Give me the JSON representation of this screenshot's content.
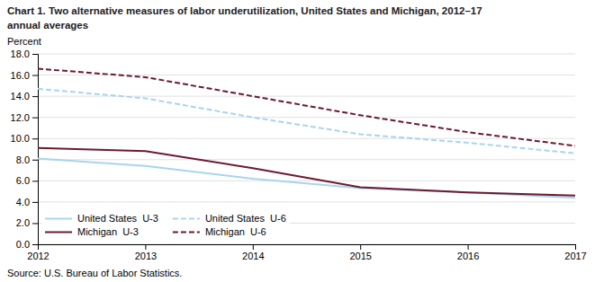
{
  "chart_data": {
    "type": "line",
    "title": "Chart 1. Two alternative measures of labor underutilization, United States and Michigan, 2012–17",
    "subtitle": "annual averages",
    "ylabel": "Percent",
    "source": "Source: U.S. Bureau of Labor Statistics.",
    "x": [
      2012,
      2013,
      2014,
      2015,
      2016,
      2017
    ],
    "series": [
      {
        "name": "United States  U-3",
        "color": "#a8d4f0",
        "line_style": "solid",
        "values": [
          8.1,
          7.4,
          6.2,
          5.3,
          4.9,
          4.4
        ]
      },
      {
        "name": "United States  U-6",
        "color": "#a8d4f0",
        "line_style": "dashed",
        "values": [
          14.7,
          13.8,
          12.0,
          10.4,
          9.6,
          8.6
        ]
      },
      {
        "name": "Michigan  U-3",
        "color": "#6b1a2e",
        "line_style": "solid",
        "values": [
          9.1,
          8.8,
          7.2,
          5.4,
          4.9,
          4.6
        ]
      },
      {
        "name": "Michigan  U-6",
        "color": "#6b1a2e",
        "line_style": "dashed",
        "values": [
          16.6,
          15.8,
          14.0,
          12.2,
          10.6,
          9.3
        ]
      }
    ],
    "xlim": [
      2012,
      2017
    ],
    "xticks": [
      2012,
      2013,
      2014,
      2015,
      2016,
      2017
    ],
    "ylim": [
      0,
      18.0
    ],
    "yticks": [
      {
        "value": 0,
        "label": "0.0"
      },
      {
        "value": 2,
        "label": "2.0"
      },
      {
        "value": 4,
        "label": "4.0"
      },
      {
        "value": 6,
        "label": "6.0"
      },
      {
        "value": 8,
        "label": "8.0"
      },
      {
        "value": 10,
        "label": "10.0"
      },
      {
        "value": 12,
        "label": "12.0"
      },
      {
        "value": 14,
        "label": "14.0"
      },
      {
        "value": 16,
        "label": "16.0"
      },
      {
        "value": 18,
        "label": "18.0"
      }
    ],
    "grid": "y",
    "legend": "lower left"
  }
}
